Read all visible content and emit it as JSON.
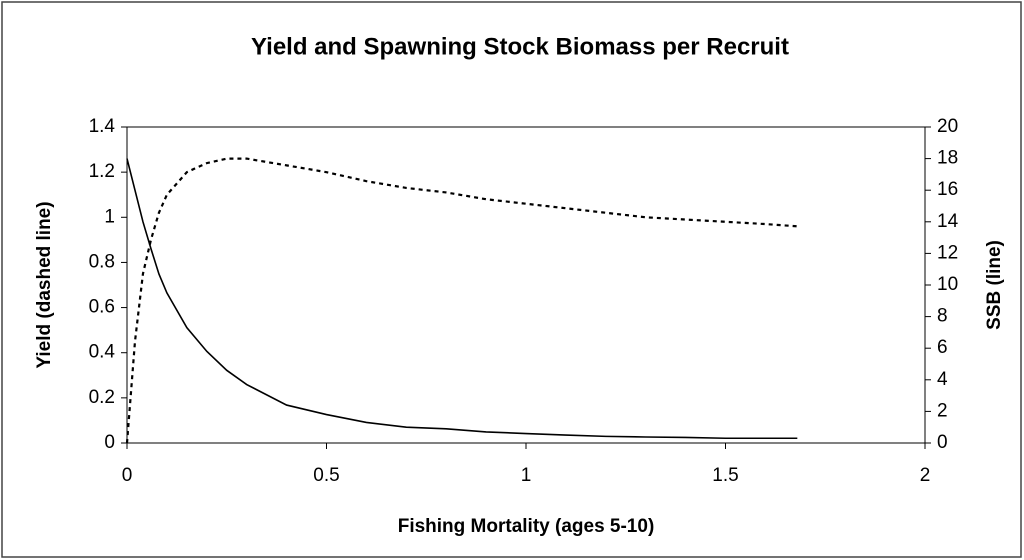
{
  "chart_data": {
    "type": "line",
    "title": "Yield and Spawning Stock Biomass per Recruit",
    "x_label": "Fishing Mortality (ages 5-10)",
    "y_label": "Yield (dashed line)",
    "y2_label": "SSB (line)",
    "x": [
      0,
      0.02,
      0.04,
      0.06,
      0.08,
      0.1,
      0.15,
      0.2,
      0.25,
      0.3,
      0.4,
      0.5,
      0.6,
      0.7,
      0.8,
      0.9,
      1.0,
      1.1,
      1.2,
      1.3,
      1.4,
      1.5,
      1.6,
      1.68
    ],
    "series": [
      {
        "name": "Yield",
        "color": "#000000",
        "line_style": "dashed",
        "values": [
          0,
          0.45,
          0.75,
          0.9,
          1.02,
          1.1,
          1.2,
          1.24,
          1.26,
          1.26,
          1.23,
          1.2,
          1.16,
          1.13,
          1.11,
          1.08,
          1.06,
          1.04,
          1.02,
          1.0,
          0.99,
          0.98,
          0.97,
          0.96
        ]
      },
      {
        "name": "SSB",
        "color": "#000000",
        "line_style": "solid",
        "axis": "y2",
        "values": [
          18,
          16,
          14,
          12.3,
          10.7,
          9.5,
          7.3,
          5.8,
          4.6,
          3.7,
          2.4,
          1.8,
          1.3,
          1.0,
          0.9,
          0.7,
          0.6,
          0.5,
          0.42,
          0.38,
          0.35,
          0.3,
          0.3,
          0.3
        ]
      }
    ],
    "xlim": [
      0,
      2
    ],
    "xticks": [
      0,
      0.5,
      1,
      1.5,
      2
    ],
    "ylim": [
      0,
      1.4
    ],
    "yticks": [
      0,
      0.2,
      0.4,
      0.6,
      0.8,
      1,
      1.2,
      1.4
    ],
    "y2lim": [
      0,
      20
    ],
    "y2ticks": [
      0,
      2,
      4,
      6,
      8,
      10,
      12,
      14,
      16,
      18,
      20
    ],
    "grid": false
  }
}
